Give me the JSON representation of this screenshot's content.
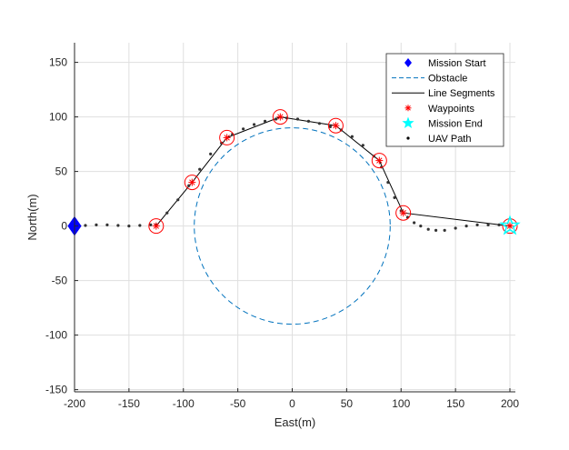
{
  "chart_data": {
    "type": "line",
    "xlabel": "East(m)",
    "ylabel": "North(m)",
    "xlim": [
      -200,
      205
    ],
    "ylim": [
      -152,
      168
    ],
    "xticks": [
      -200,
      -150,
      -100,
      -50,
      0,
      50,
      100,
      150,
      200
    ],
    "yticks": [
      -150,
      -100,
      -50,
      0,
      50,
      100,
      150
    ],
    "xtick_labels": [
      "-200",
      "-150",
      "-100",
      "-50",
      "0",
      "50",
      "100",
      "150",
      "200"
    ],
    "ytick_labels": [
      "-150",
      "-100",
      "-50",
      "0",
      "50",
      "100",
      "150"
    ],
    "grid": true,
    "legend_position": "top-right",
    "legend": [
      {
        "label": "Mission Start",
        "marker": "diamond",
        "color": "#0000ff"
      },
      {
        "label": "Obstacle",
        "marker": "dashed-line",
        "color": "#0072bd"
      },
      {
        "label": "Line Segments",
        "marker": "solid-line",
        "color": "#000000"
      },
      {
        "label": "Waypoints",
        "marker": "asterisk",
        "color": "#ff0000"
      },
      {
        "label": "Mission End",
        "marker": "star",
        "color": "#00ffff"
      },
      {
        "label": "UAV Path",
        "marker": "dot",
        "color": "#000000"
      }
    ],
    "series": [
      {
        "name": "Mission Start",
        "points": [
          [
            -200,
            0
          ]
        ]
      },
      {
        "name": "Obstacle",
        "center": [
          0,
          0
        ],
        "radius": 90
      },
      {
        "name": "Line Segments",
        "points": [
          [
            -125,
            0
          ],
          [
            -92,
            40
          ],
          [
            -60,
            81
          ],
          [
            -11,
            100
          ],
          [
            40,
            92
          ],
          [
            80,
            60
          ],
          [
            102,
            12
          ],
          [
            200,
            0
          ]
        ]
      },
      {
        "name": "Waypoints",
        "points": [
          [
            -125,
            0
          ],
          [
            -92,
            40
          ],
          [
            -60,
            81
          ],
          [
            -11,
            100
          ],
          [
            40,
            92
          ],
          [
            80,
            60
          ],
          [
            102,
            12
          ],
          [
            200,
            0
          ]
        ]
      },
      {
        "name": "Mission End",
        "points": [
          [
            200,
            0
          ]
        ]
      },
      {
        "name": "UAV Path",
        "points": [
          [
            -200,
            0
          ],
          [
            -190,
            0.5
          ],
          [
            -180,
            1
          ],
          [
            -170,
            1
          ],
          [
            -160,
            0.5
          ],
          [
            -150,
            0
          ],
          [
            -140,
            0.5
          ],
          [
            -130,
            1
          ],
          [
            -125,
            1
          ],
          [
            -115,
            12
          ],
          [
            -105,
            24
          ],
          [
            -95,
            37
          ],
          [
            -85,
            52
          ],
          [
            -75,
            66
          ],
          [
            -65,
            76
          ],
          [
            -55,
            84
          ],
          [
            -45,
            89
          ],
          [
            -35,
            93
          ],
          [
            -25,
            96
          ],
          [
            -15,
            98
          ],
          [
            -5,
            99
          ],
          [
            5,
            98
          ],
          [
            15,
            96
          ],
          [
            25,
            94
          ],
          [
            35,
            91
          ],
          [
            45,
            88
          ],
          [
            55,
            82
          ],
          [
            65,
            74
          ],
          [
            75,
            64
          ],
          [
            82,
            54
          ],
          [
            88,
            40
          ],
          [
            94,
            26
          ],
          [
            100,
            14
          ],
          [
            106,
            8
          ],
          [
            112,
            3
          ],
          [
            118,
            0
          ],
          [
            125,
            -3
          ],
          [
            132,
            -4
          ],
          [
            140,
            -4
          ],
          [
            150,
            -2
          ],
          [
            160,
            0
          ],
          [
            170,
            1
          ],
          [
            180,
            1
          ],
          [
            190,
            1
          ],
          [
            200,
            0
          ]
        ]
      }
    ]
  }
}
